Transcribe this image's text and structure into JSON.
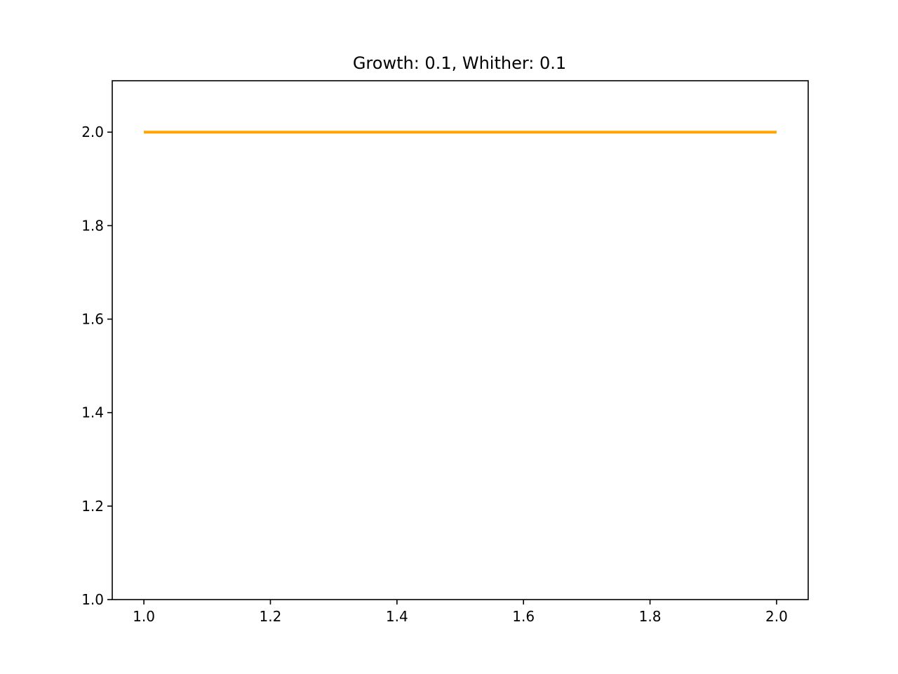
{
  "chart_data": {
    "type": "line",
    "title": "Growth: 0.1, Whither: 0.1",
    "xlabel": "",
    "ylabel": "",
    "xlim": [
      0.95,
      2.05
    ],
    "ylim": [
      1.0,
      2.11
    ],
    "x_ticks": [
      1.0,
      1.2,
      1.4,
      1.6,
      1.8,
      2.0
    ],
    "x_tick_labels": [
      "1.0",
      "1.2",
      "1.4",
      "1.6",
      "1.8",
      "2.0"
    ],
    "y_ticks": [
      1.0,
      1.2,
      1.4,
      1.6,
      1.8,
      2.0
    ],
    "y_tick_labels": [
      "1.0",
      "1.2",
      "1.4",
      "1.6",
      "1.8",
      "2.0"
    ],
    "grid": false,
    "series": [
      {
        "color": "#ffa500",
        "x": [
          1.0,
          2.0
        ],
        "y": [
          2.0,
          2.0
        ]
      }
    ]
  }
}
